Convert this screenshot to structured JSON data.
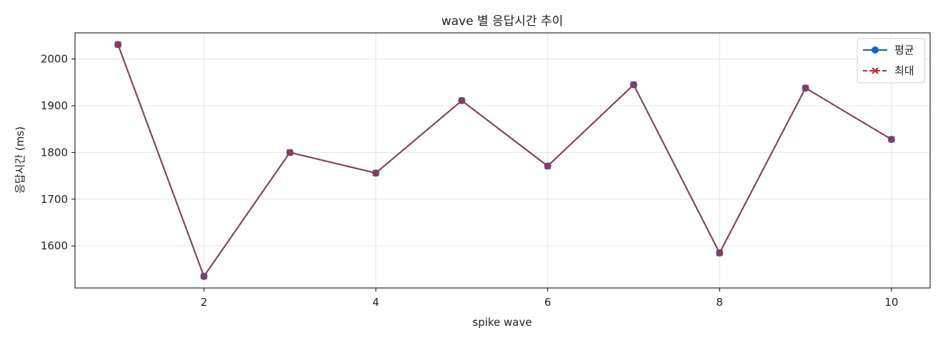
{
  "chart_data": {
    "type": "line",
    "title": "wave 별 응답시간 추이",
    "xlabel": "spike wave",
    "ylabel": "응답시간 (ms)",
    "x": [
      1,
      2,
      3,
      4,
      5,
      6,
      7,
      8,
      9,
      10
    ],
    "xlim": [
      0.5,
      10.45
    ],
    "ylim": [
      1510,
      2056
    ],
    "xticks": [
      2,
      4,
      6,
      8,
      10
    ],
    "yticks": [
      1600,
      1700,
      1800,
      1900,
      2000
    ],
    "grid": true,
    "legend_position": "top-right",
    "series": [
      {
        "name": "평균",
        "color": "#1565c0",
        "style": "solid",
        "marker": "circle",
        "values": [
          2031,
          1535,
          1800,
          1756,
          1911,
          1771,
          1945,
          1585,
          1938,
          1828
        ]
      },
      {
        "name": "최대",
        "color": "#c62828",
        "style": "dashed",
        "marker": "x",
        "values": [
          2031,
          1535,
          1800,
          1756,
          1911,
          1771,
          1945,
          1585,
          1938,
          1828
        ]
      }
    ]
  }
}
